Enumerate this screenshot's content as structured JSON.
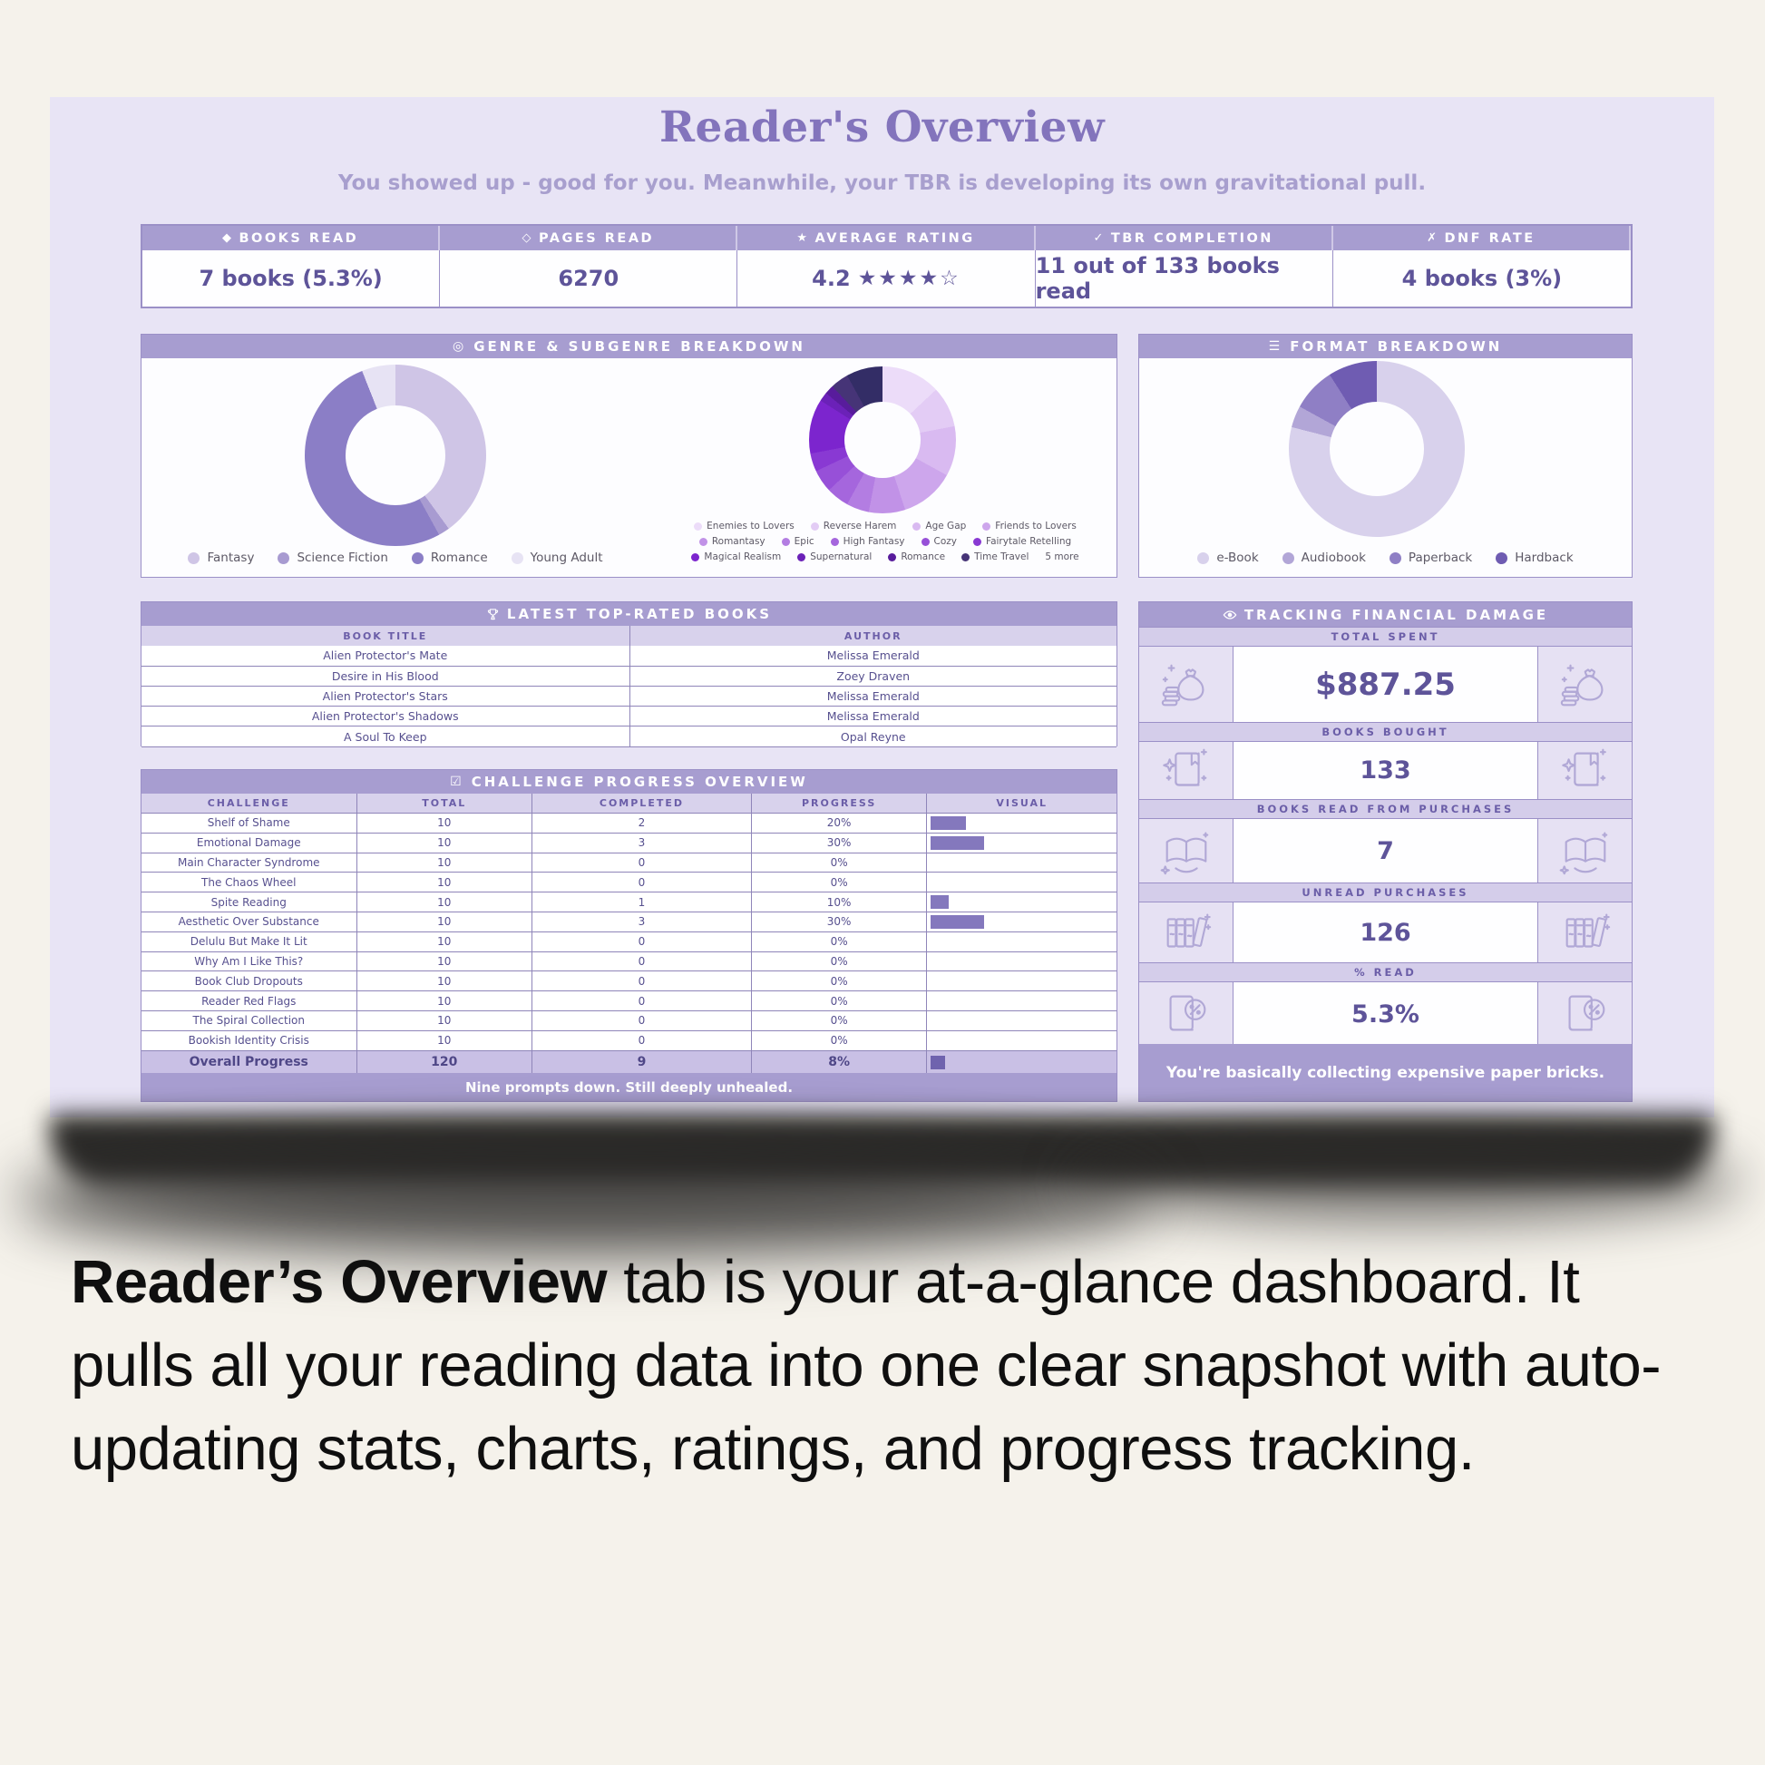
{
  "page": {
    "title": "Reader's Overview",
    "subtitle": "You showed up - good for you. Meanwhile, your TBR is developing its own gravitational pull.",
    "caption_bold": "Reader’s Overview",
    "caption_rest": " tab is your at-a-glance dashboard. It pulls all your reading data into one clear snapshot with auto-updating stats, charts, ratings, and progress tracking."
  },
  "colors": {
    "accent_header": "#a79dd0",
    "subheader": "#d8d2ec",
    "card_bg": "#e8e4f5",
    "text_purple": "#57508f",
    "bar": "#8478bd"
  },
  "stats": [
    {
      "icon": "◆",
      "label": "BOOKS READ",
      "value": "7 books (5.3%)"
    },
    {
      "icon": "◇",
      "label": "PAGES READ",
      "value": "6270"
    },
    {
      "icon": "★",
      "label": "AVERAGE RATING",
      "value": "4.2",
      "stars": "★★★★☆"
    },
    {
      "icon": "✓",
      "label": "TBR COMPLETION",
      "value": "11 out of 133 books read"
    },
    {
      "icon": "✗",
      "label": "DNF RATE",
      "value": "4 books (3%)"
    }
  ],
  "sections": {
    "genre": {
      "icon_glyph": "◎",
      "title": "GENRE & SUBGENRE BREAKDOWN"
    },
    "format": {
      "icon_glyph": "☰",
      "title": "FORMAT BREAKDOWN"
    },
    "books": {
      "icon": "trophy-icon",
      "title": "LATEST TOP-RATED BOOKS",
      "columns": [
        "BOOK TITLE",
        "AUTHOR"
      ],
      "rows": [
        [
          "Alien Protector's Mate",
          "Melissa Emerald"
        ],
        [
          "Desire in His Blood",
          "Zoey Draven"
        ],
        [
          "Alien Protector's Stars",
          "Melissa Emerald"
        ],
        [
          "Alien Protector's Shadows",
          "Melissa Emerald"
        ],
        [
          "A Soul To Keep",
          "Opal Reyne"
        ]
      ]
    },
    "challenge": {
      "icon_glyph": "☑",
      "title": "CHALLENGE PROGRESS OVERVIEW",
      "columns": [
        "CHALLENGE",
        "TOTAL",
        "COMPLETED",
        "PROGRESS",
        "VISUAL"
      ],
      "rows": [
        {
          "name": "Shelf of Shame",
          "total": "10",
          "completed": "2",
          "progress": "20%",
          "pct": 20
        },
        {
          "name": "Emotional Damage",
          "total": "10",
          "completed": "3",
          "progress": "30%",
          "pct": 30
        },
        {
          "name": "Main Character Syndrome",
          "total": "10",
          "completed": "0",
          "progress": "0%",
          "pct": 0
        },
        {
          "name": "The Chaos Wheel",
          "total": "10",
          "completed": "0",
          "progress": "0%",
          "pct": 0
        },
        {
          "name": "Spite Reading",
          "total": "10",
          "completed": "1",
          "progress": "10%",
          "pct": 10
        },
        {
          "name": "Aesthetic Over Substance",
          "total": "10",
          "completed": "3",
          "progress": "30%",
          "pct": 30
        },
        {
          "name": "Delulu But Make It Lit",
          "total": "10",
          "completed": "0",
          "progress": "0%",
          "pct": 0
        },
        {
          "name": "Why Am I Like This?",
          "total": "10",
          "completed": "0",
          "progress": "0%",
          "pct": 0
        },
        {
          "name": "Book Club Dropouts",
          "total": "10",
          "completed": "0",
          "progress": "0%",
          "pct": 0
        },
        {
          "name": "Reader Red Flags",
          "total": "10",
          "completed": "0",
          "progress": "0%",
          "pct": 0
        },
        {
          "name": "The Spiral Collection",
          "total": "10",
          "completed": "0",
          "progress": "0%",
          "pct": 0
        },
        {
          "name": "Bookish Identity Crisis",
          "total": "10",
          "completed": "0",
          "progress": "0%",
          "pct": 0
        }
      ],
      "overall": {
        "name": "Overall Progress",
        "total": "120",
        "completed": "9",
        "progress": "8%",
        "pct": 8
      },
      "footer": "Nine prompts down. Still deeply unhealed."
    },
    "financial": {
      "icon": "eye-icon",
      "title": "TRACKING FINANCIAL DAMAGE",
      "rows": [
        {
          "label": "TOTAL SPENT",
          "value": "$887.25",
          "icon": "money-bag-icon",
          "big": true
        },
        {
          "label": "BOOKS BOUGHT",
          "value": "133",
          "icon": "sparkle-book-icon",
          "big": false
        },
        {
          "label": "BOOKS READ FROM PURCHASES",
          "value": "7",
          "icon": "open-book-icon",
          "big": false
        },
        {
          "label": "UNREAD PURCHASES",
          "value": "126",
          "icon": "book-stack-icon",
          "big": false
        },
        {
          "label": "% READ",
          "value": "5.3%",
          "icon": "percent-book-icon",
          "big": false
        }
      ],
      "footer": "You're basically collecting expensive paper bricks."
    }
  },
  "chart_data": [
    {
      "type": "pie",
      "title": "Genre Breakdown",
      "labels": [
        "Fantasy",
        "Science Fiction",
        "Romance",
        "Young Adult"
      ],
      "values": [
        40,
        2,
        52,
        6
      ],
      "colors": [
        "#cfc5e6",
        "#a89bd1",
        "#8b7ec6",
        "#e7e3f4"
      ],
      "legend_position": "bottom"
    },
    {
      "type": "pie",
      "title": "Subgenre Breakdown",
      "labels": [
        "Enemies to Lovers",
        "Reverse Harem",
        "Age Gap",
        "Friends to Lovers",
        "Romantasy",
        "Epic",
        "High Fantasy",
        "Cozy",
        "Fairytale Retelling",
        "Magical Realism",
        "Supernatural",
        "Romance",
        "Time Travel",
        "5 more"
      ],
      "values": [
        13,
        9,
        11,
        12,
        8,
        5,
        5,
        5,
        4,
        12,
        2,
        2,
        4,
        8
      ],
      "colors": [
        "#ecdcf9",
        "#e3ccf5",
        "#d9baf1",
        "#cda6ec",
        "#c192e7",
        "#b37de2",
        "#a566dd",
        "#9750d8",
        "#8939d3",
        "#7c25ce",
        "#6b21b8",
        "#581c9c",
        "#463477",
        "#332d66"
      ],
      "legend_rows": [
        [
          0,
          1,
          2,
          3
        ],
        [
          4,
          5,
          6,
          7,
          8
        ],
        [
          9,
          10,
          11,
          12,
          13
        ]
      ],
      "legend_position": "bottom"
    },
    {
      "type": "pie",
      "title": "Format Breakdown",
      "labels": [
        "e-Book",
        "Audiobook",
        "Paperback",
        "Hardback"
      ],
      "values": [
        79,
        4,
        8,
        9
      ],
      "colors": [
        "#d8d1ec",
        "#b2a6d7",
        "#8f7fc5",
        "#6f5cb2"
      ],
      "legend_position": "bottom"
    }
  ]
}
